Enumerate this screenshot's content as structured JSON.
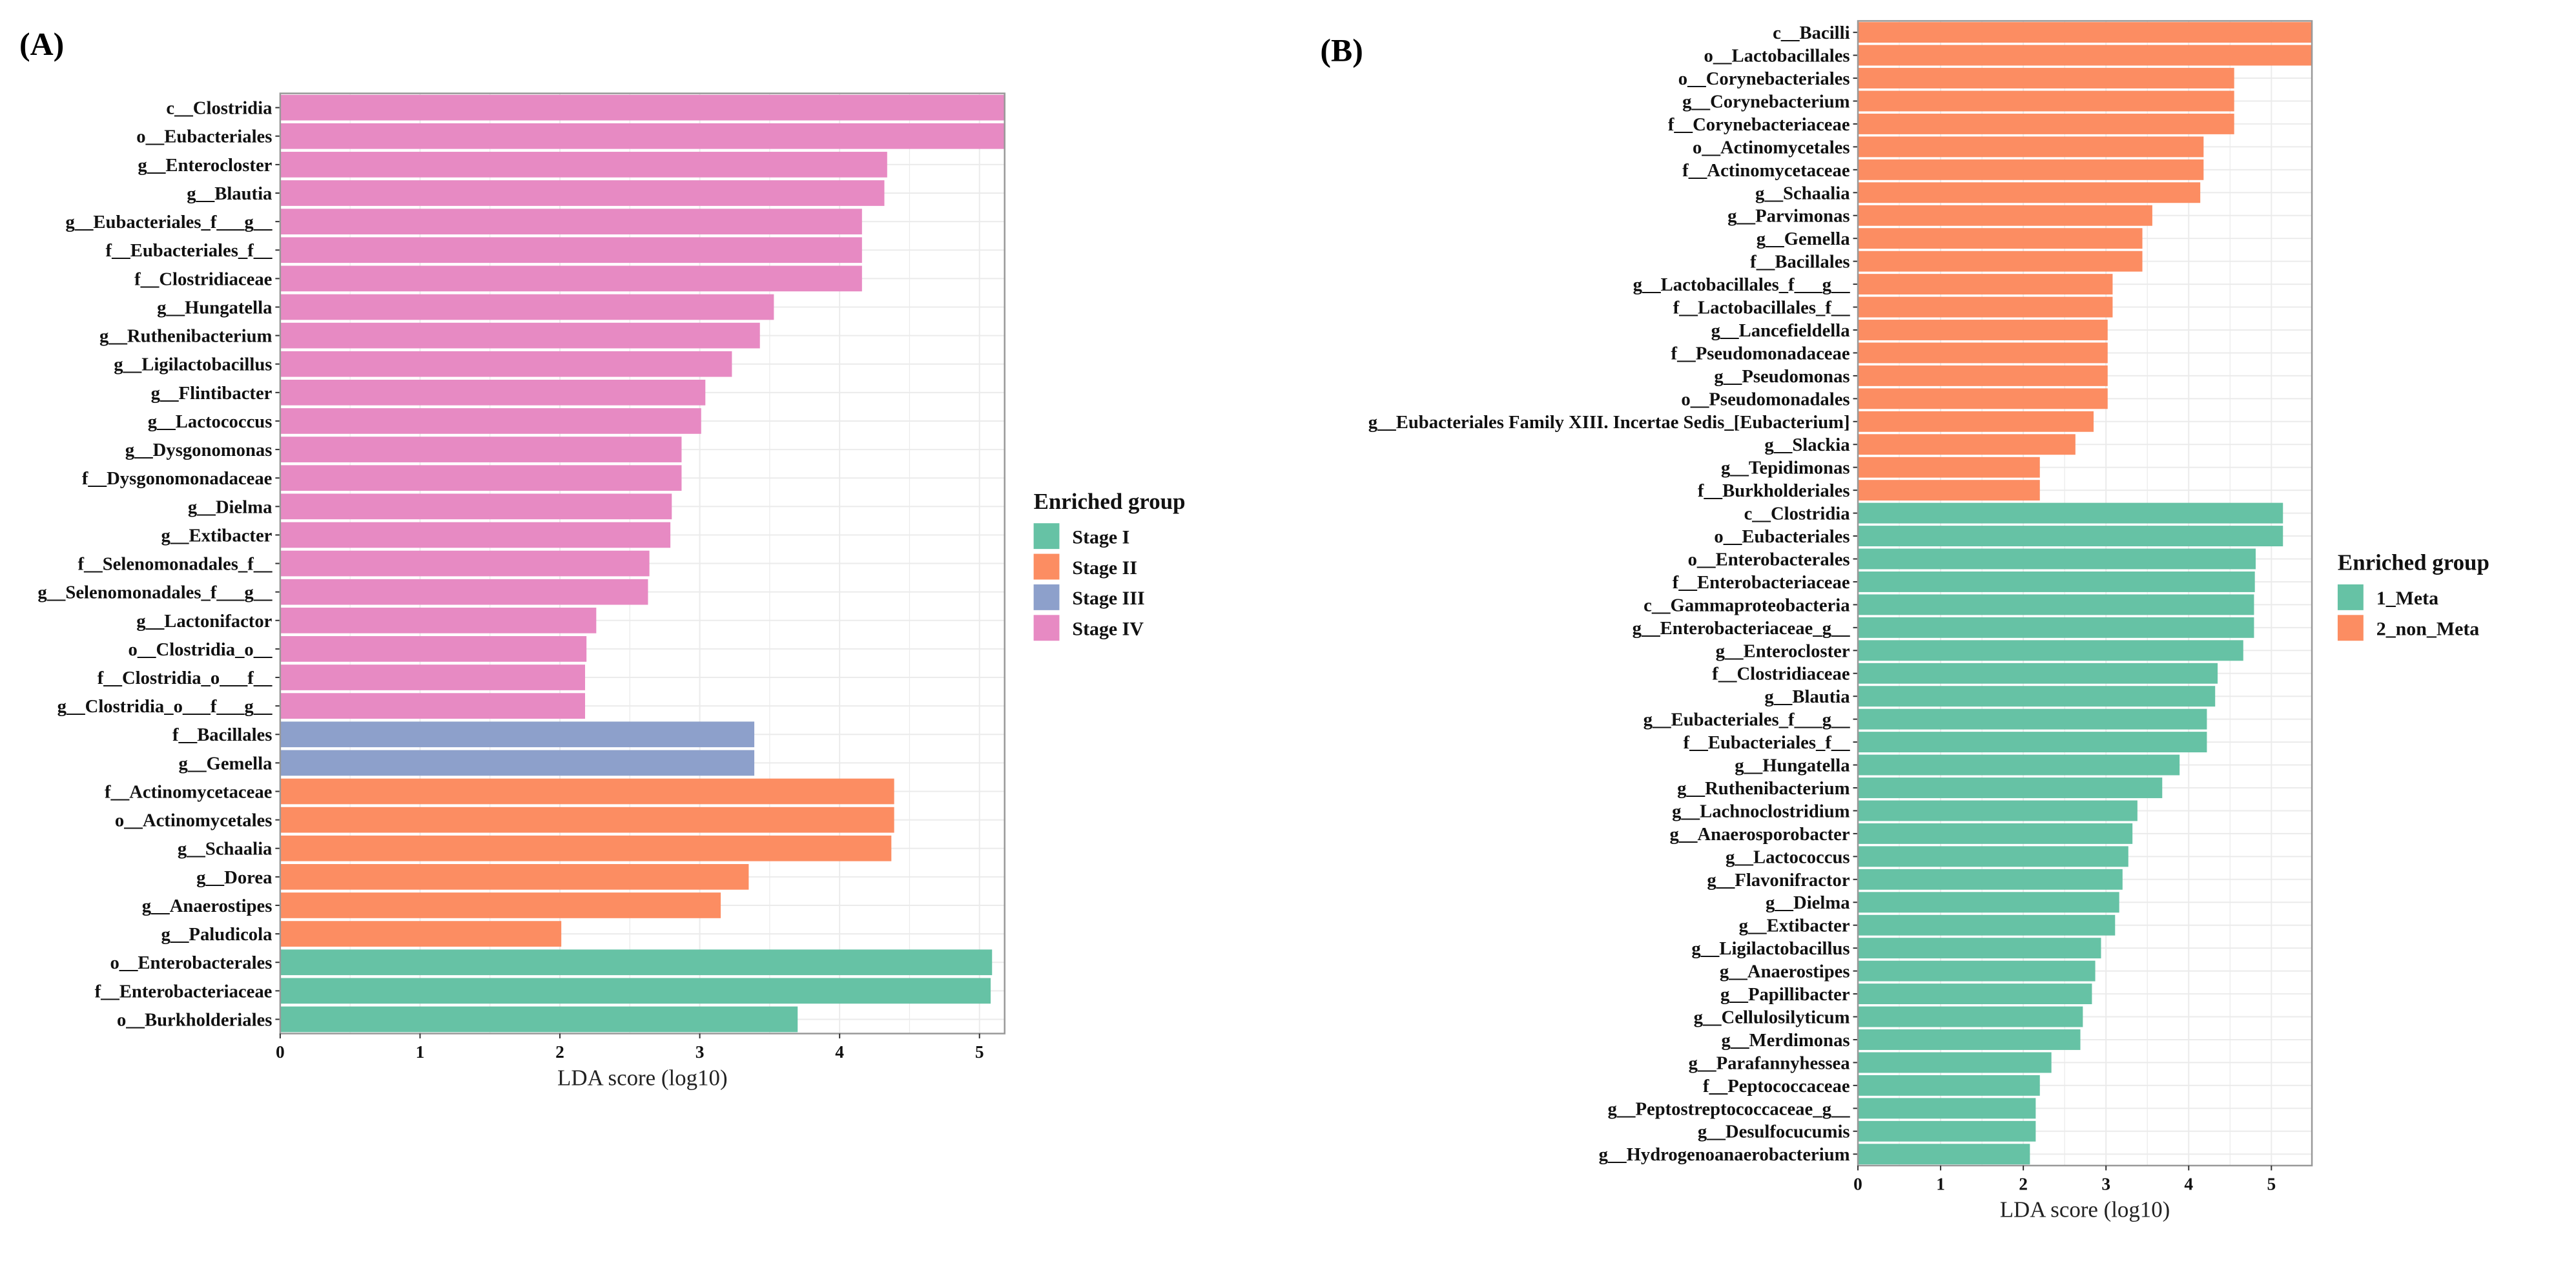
{
  "chart_data": [
    {
      "type": "bar",
      "orientation": "horizontal",
      "panel_label": "(A)",
      "xlabel": "LDA score (log10)",
      "xlim": [
        0,
        5.18
      ],
      "xticks": [
        "0",
        "1",
        "2",
        "3",
        "4",
        "5"
      ],
      "grid": true,
      "legend": {
        "title": "Enriched group",
        "placement": "right",
        "entries": [
          {
            "name": "Stage I",
            "color": "#66C2A5"
          },
          {
            "name": "Stage II",
            "color": "#FC8D62"
          },
          {
            "name": "Stage III",
            "color": "#8DA0CB"
          },
          {
            "name": "Stage IV",
            "color": "#E78AC3"
          }
        ]
      },
      "bars": [
        {
          "label": "c__Clostridia",
          "value": 5.18,
          "group": "Stage IV"
        },
        {
          "label": "o__Eubacteriales",
          "value": 5.18,
          "group": "Stage IV"
        },
        {
          "label": "g__Enterocloster",
          "value": 4.34,
          "group": "Stage IV"
        },
        {
          "label": "g__Blautia",
          "value": 4.32,
          "group": "Stage IV"
        },
        {
          "label": "g__Eubacteriales_f___g__",
          "value": 4.16,
          "group": "Stage IV"
        },
        {
          "label": "f__Eubacteriales_f__",
          "value": 4.16,
          "group": "Stage IV"
        },
        {
          "label": "f__Clostridiaceae",
          "value": 4.16,
          "group": "Stage IV"
        },
        {
          "label": "g__Hungatella",
          "value": 3.53,
          "group": "Stage IV"
        },
        {
          "label": "g__Ruthenibacterium",
          "value": 3.43,
          "group": "Stage IV"
        },
        {
          "label": "g__Ligilactobacillus",
          "value": 3.23,
          "group": "Stage IV"
        },
        {
          "label": "g__Flintibacter",
          "value": 3.04,
          "group": "Stage IV"
        },
        {
          "label": "g__Lactococcus",
          "value": 3.01,
          "group": "Stage IV"
        },
        {
          "label": "g__Dysgonomonas",
          "value": 2.87,
          "group": "Stage IV"
        },
        {
          "label": "f__Dysgonomonadaceae",
          "value": 2.87,
          "group": "Stage IV"
        },
        {
          "label": "g__Dielma",
          "value": 2.8,
          "group": "Stage IV"
        },
        {
          "label": "g__Extibacter",
          "value": 2.79,
          "group": "Stage IV"
        },
        {
          "label": "f__Selenomonadales_f__",
          "value": 2.64,
          "group": "Stage IV"
        },
        {
          "label": "g__Selenomonadales_f___g__",
          "value": 2.63,
          "group": "Stage IV"
        },
        {
          "label": "g__Lactonifactor",
          "value": 2.26,
          "group": "Stage IV"
        },
        {
          "label": "o__Clostridia_o__",
          "value": 2.19,
          "group": "Stage IV"
        },
        {
          "label": "f__Clostridia_o___f__",
          "value": 2.18,
          "group": "Stage IV"
        },
        {
          "label": "g__Clostridia_o___f___g__",
          "value": 2.18,
          "group": "Stage IV"
        },
        {
          "label": "f__Bacillales",
          "value": 3.39,
          "group": "Stage III"
        },
        {
          "label": "g__Gemella",
          "value": 3.39,
          "group": "Stage III"
        },
        {
          "label": "f__Actinomycetaceae",
          "value": 4.39,
          "group": "Stage II"
        },
        {
          "label": "o__Actinomycetales",
          "value": 4.39,
          "group": "Stage II"
        },
        {
          "label": "g__Schaalia",
          "value": 4.37,
          "group": "Stage II"
        },
        {
          "label": "g__Dorea",
          "value": 3.35,
          "group": "Stage II"
        },
        {
          "label": "g__Anaerostipes",
          "value": 3.15,
          "group": "Stage II"
        },
        {
          "label": "g__Paludicola",
          "value": 2.01,
          "group": "Stage II"
        },
        {
          "label": "o__Enterobacterales",
          "value": 5.09,
          "group": "Stage I"
        },
        {
          "label": "f__Enterobacteriaceae",
          "value": 5.08,
          "group": "Stage I"
        },
        {
          "label": "o__Burkholderiales",
          "value": 3.7,
          "group": "Stage I"
        }
      ]
    },
    {
      "type": "bar",
      "orientation": "horizontal",
      "panel_label": "(B)",
      "xlabel": "LDA score (log10)",
      "xlim": [
        0,
        5.49
      ],
      "xticks": [
        "0",
        "1",
        "2",
        "3",
        "4",
        "5"
      ],
      "grid": true,
      "legend": {
        "title": "Enriched group",
        "placement": "right",
        "entries": [
          {
            "name": "1_Meta",
            "color": "#66C2A5"
          },
          {
            "name": "2_non_Meta",
            "color": "#FC8D62"
          }
        ]
      },
      "bars": [
        {
          "label": "c__Bacilli",
          "value": 5.49,
          "group": "2_non_Meta"
        },
        {
          "label": "o__Lactobacillales",
          "value": 5.49,
          "group": "2_non_Meta"
        },
        {
          "label": "o__Corynebacteriales",
          "value": 4.55,
          "group": "2_non_Meta"
        },
        {
          "label": "g__Corynebacterium",
          "value": 4.55,
          "group": "2_non_Meta"
        },
        {
          "label": "f__Corynebacteriaceae",
          "value": 4.55,
          "group": "2_non_Meta"
        },
        {
          "label": "o__Actinomycetales",
          "value": 4.18,
          "group": "2_non_Meta"
        },
        {
          "label": "f__Actinomycetaceae",
          "value": 4.18,
          "group": "2_non_Meta"
        },
        {
          "label": "g__Schaalia",
          "value": 4.14,
          "group": "2_non_Meta"
        },
        {
          "label": "g__Parvimonas",
          "value": 3.56,
          "group": "2_non_Meta"
        },
        {
          "label": "g__Gemella",
          "value": 3.44,
          "group": "2_non_Meta"
        },
        {
          "label": "f__Bacillales",
          "value": 3.44,
          "group": "2_non_Meta"
        },
        {
          "label": "g__Lactobacillales_f___g__",
          "value": 3.08,
          "group": "2_non_Meta"
        },
        {
          "label": "f__Lactobacillales_f__",
          "value": 3.08,
          "group": "2_non_Meta"
        },
        {
          "label": "g__Lancefieldella",
          "value": 3.02,
          "group": "2_non_Meta"
        },
        {
          "label": "f__Pseudomonadaceae",
          "value": 3.02,
          "group": "2_non_Meta"
        },
        {
          "label": "g__Pseudomonas",
          "value": 3.02,
          "group": "2_non_Meta"
        },
        {
          "label": "o__Pseudomonadales",
          "value": 3.02,
          "group": "2_non_Meta"
        },
        {
          "label": "g__Eubacteriales Family XIII. Incertae Sedis_[Eubacterium]",
          "value": 2.85,
          "group": "2_non_Meta"
        },
        {
          "label": "g__Slackia",
          "value": 2.63,
          "group": "2_non_Meta"
        },
        {
          "label": "g__Tepidimonas",
          "value": 2.2,
          "group": "2_non_Meta"
        },
        {
          "label": "f__Burkholderiales",
          "value": 2.2,
          "group": "2_non_Meta"
        },
        {
          "label": "c__Clostridia",
          "value": 5.14,
          "group": "1_Meta"
        },
        {
          "label": "o__Eubacteriales",
          "value": 5.14,
          "group": "1_Meta"
        },
        {
          "label": "o__Enterobacterales",
          "value": 4.81,
          "group": "1_Meta"
        },
        {
          "label": "f__Enterobacteriaceae",
          "value": 4.8,
          "group": "1_Meta"
        },
        {
          "label": "c__Gammaproteobacteria",
          "value": 4.79,
          "group": "1_Meta"
        },
        {
          "label": "g__Enterobacteriaceae_g__",
          "value": 4.79,
          "group": "1_Meta"
        },
        {
          "label": "g__Enterocloster",
          "value": 4.66,
          "group": "1_Meta"
        },
        {
          "label": "f__Clostridiaceae",
          "value": 4.35,
          "group": "1_Meta"
        },
        {
          "label": "g__Blautia",
          "value": 4.32,
          "group": "1_Meta"
        },
        {
          "label": "g__Eubacteriales_f___g__",
          "value": 4.22,
          "group": "1_Meta"
        },
        {
          "label": "f__Eubacteriales_f__",
          "value": 4.22,
          "group": "1_Meta"
        },
        {
          "label": "g__Hungatella",
          "value": 3.89,
          "group": "1_Meta"
        },
        {
          "label": "g__Ruthenibacterium",
          "value": 3.68,
          "group": "1_Meta"
        },
        {
          "label": "g__Lachnoclostridium",
          "value": 3.38,
          "group": "1_Meta"
        },
        {
          "label": "g__Anaerosporobacter",
          "value": 3.32,
          "group": "1_Meta"
        },
        {
          "label": "g__Lactococcus",
          "value": 3.27,
          "group": "1_Meta"
        },
        {
          "label": "g__Flavonifractor",
          "value": 3.2,
          "group": "1_Meta"
        },
        {
          "label": "g__Dielma",
          "value": 3.16,
          "group": "1_Meta"
        },
        {
          "label": "g__Extibacter",
          "value": 3.11,
          "group": "1_Meta"
        },
        {
          "label": "g__Ligilactobacillus",
          "value": 2.94,
          "group": "1_Meta"
        },
        {
          "label": "g__Anaerostipes",
          "value": 2.87,
          "group": "1_Meta"
        },
        {
          "label": "g__Papillibacter",
          "value": 2.83,
          "group": "1_Meta"
        },
        {
          "label": "g__Cellulosilyticum",
          "value": 2.72,
          "group": "1_Meta"
        },
        {
          "label": "g__Merdimonas",
          "value": 2.69,
          "group": "1_Meta"
        },
        {
          "label": "g__Parafannyhessea",
          "value": 2.34,
          "group": "1_Meta"
        },
        {
          "label": "f__Peptococcaceae",
          "value": 2.2,
          "group": "1_Meta"
        },
        {
          "label": "g__Peptostreptococcaceae_g__",
          "value": 2.15,
          "group": "1_Meta"
        },
        {
          "label": "g__Desulfocucumis",
          "value": 2.15,
          "group": "1_Meta"
        },
        {
          "label": "g__Hydrogenoanaerobacterium",
          "value": 2.08,
          "group": "1_Meta"
        }
      ]
    }
  ]
}
